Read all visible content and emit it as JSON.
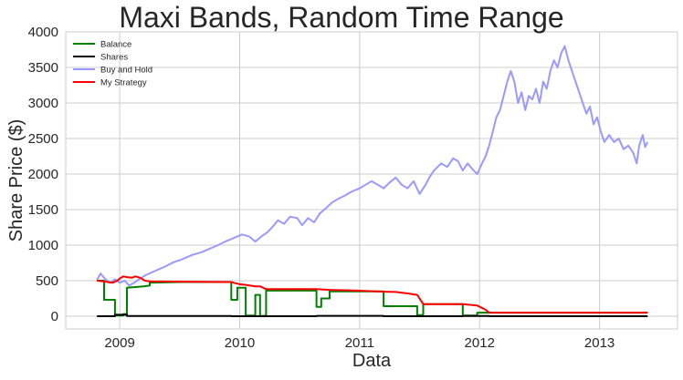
{
  "chart_data": {
    "type": "line",
    "title": "Maxi Bands, Random Time Range",
    "xlabel": "Data",
    "ylabel": "Share Price ($)",
    "xlim": [
      2008.55,
      2013.65
    ],
    "ylim": [
      -180,
      4000
    ],
    "x_ticks": [
      2009,
      2010,
      2011,
      2012,
      2013
    ],
    "x_tick_labels": [
      "2009",
      "2010",
      "2011",
      "2012",
      "2013"
    ],
    "y_ticks": [
      0,
      500,
      1000,
      1500,
      2000,
      2500,
      3000,
      3500,
      4000
    ],
    "y_tick_labels": [
      "0",
      "500",
      "1000",
      "1500",
      "2000",
      "2500",
      "3000",
      "3500",
      "4000"
    ],
    "grid": true,
    "legend_position": "top-left",
    "series": [
      {
        "name": "Balance",
        "color": "#008000",
        "points": [
          [
            2008.81,
            500
          ],
          [
            2008.87,
            500
          ],
          [
            2008.87,
            230
          ],
          [
            2008.96,
            230
          ],
          [
            2008.96,
            10
          ],
          [
            2009.03,
            10
          ],
          [
            2009.03,
            30
          ],
          [
            2009.06,
            30
          ],
          [
            2009.06,
            400
          ],
          [
            2009.2,
            420
          ],
          [
            2009.25,
            430
          ],
          [
            2009.25,
            470
          ],
          [
            2009.5,
            480
          ],
          [
            2009.93,
            480
          ],
          [
            2009.93,
            230
          ],
          [
            2009.98,
            230
          ],
          [
            2009.98,
            400
          ],
          [
            2010.05,
            400
          ],
          [
            2010.05,
            10
          ],
          [
            2010.13,
            10
          ],
          [
            2010.13,
            300
          ],
          [
            2010.17,
            300
          ],
          [
            2010.17,
            5
          ],
          [
            2010.22,
            5
          ],
          [
            2010.22,
            360
          ],
          [
            2010.64,
            360
          ],
          [
            2010.64,
            130
          ],
          [
            2010.68,
            130
          ],
          [
            2010.68,
            250
          ],
          [
            2010.75,
            250
          ],
          [
            2010.75,
            350
          ],
          [
            2010.98,
            350
          ],
          [
            2011.2,
            350
          ],
          [
            2011.2,
            140
          ],
          [
            2011.48,
            140
          ],
          [
            2011.48,
            15
          ],
          [
            2011.53,
            15
          ],
          [
            2011.53,
            170
          ],
          [
            2011.86,
            170
          ],
          [
            2011.86,
            10
          ],
          [
            2011.98,
            10
          ],
          [
            2011.98,
            50
          ],
          [
            2012.08,
            50
          ],
          [
            2013.4,
            50
          ]
        ]
      },
      {
        "name": "Shares",
        "color": "#000000",
        "points": [
          [
            2008.81,
            0
          ],
          [
            2008.96,
            0
          ],
          [
            2008.96,
            20
          ],
          [
            2009.06,
            20
          ],
          [
            2009.06,
            2
          ],
          [
            2009.93,
            2
          ],
          [
            2009.93,
            0
          ],
          [
            2010.64,
            0
          ],
          [
            2010.64,
            5
          ],
          [
            2011.2,
            5
          ],
          [
            2011.2,
            0
          ],
          [
            2011.86,
            0
          ],
          [
            2011.86,
            3
          ],
          [
            2012.08,
            3
          ],
          [
            2012.08,
            0
          ],
          [
            2013.4,
            0
          ]
        ]
      },
      {
        "name": "Buy and Hold",
        "color": "#9999ff",
        "points": [
          [
            2008.81,
            510
          ],
          [
            2008.84,
            600
          ],
          [
            2008.88,
            520
          ],
          [
            2008.92,
            470
          ],
          [
            2008.96,
            520
          ],
          [
            2009.0,
            470
          ],
          [
            2009.04,
            500
          ],
          [
            2009.08,
            430
          ],
          [
            2009.12,
            470
          ],
          [
            2009.17,
            530
          ],
          [
            2009.22,
            580
          ],
          [
            2009.3,
            640
          ],
          [
            2009.38,
            700
          ],
          [
            2009.45,
            760
          ],
          [
            2009.52,
            800
          ],
          [
            2009.6,
            860
          ],
          [
            2009.68,
            900
          ],
          [
            2009.75,
            950
          ],
          [
            2009.82,
            1000
          ],
          [
            2009.88,
            1050
          ],
          [
            2009.95,
            1100
          ],
          [
            2010.02,
            1150
          ],
          [
            2010.08,
            1120
          ],
          [
            2010.13,
            1050
          ],
          [
            2010.18,
            1120
          ],
          [
            2010.23,
            1180
          ],
          [
            2010.27,
            1250
          ],
          [
            2010.32,
            1350
          ],
          [
            2010.37,
            1300
          ],
          [
            2010.42,
            1400
          ],
          [
            2010.48,
            1380
          ],
          [
            2010.52,
            1280
          ],
          [
            2010.57,
            1380
          ],
          [
            2010.62,
            1320
          ],
          [
            2010.67,
            1450
          ],
          [
            2010.72,
            1520
          ],
          [
            2010.77,
            1600
          ],
          [
            2010.82,
            1650
          ],
          [
            2010.88,
            1700
          ],
          [
            2010.93,
            1750
          ],
          [
            2011.0,
            1800
          ],
          [
            2011.05,
            1850
          ],
          [
            2011.1,
            1900
          ],
          [
            2011.15,
            1850
          ],
          [
            2011.2,
            1800
          ],
          [
            2011.25,
            1880
          ],
          [
            2011.3,
            1950
          ],
          [
            2011.35,
            1850
          ],
          [
            2011.4,
            1800
          ],
          [
            2011.45,
            1900
          ],
          [
            2011.5,
            1720
          ],
          [
            2011.55,
            1850
          ],
          [
            2011.58,
            1950
          ],
          [
            2011.62,
            2050
          ],
          [
            2011.68,
            2150
          ],
          [
            2011.73,
            2100
          ],
          [
            2011.78,
            2220
          ],
          [
            2011.82,
            2180
          ],
          [
            2011.86,
            2050
          ],
          [
            2011.9,
            2150
          ],
          [
            2011.95,
            2050
          ],
          [
            2011.98,
            2000
          ],
          [
            2012.02,
            2150
          ],
          [
            2012.05,
            2250
          ],
          [
            2012.08,
            2400
          ],
          [
            2012.11,
            2600
          ],
          [
            2012.14,
            2800
          ],
          [
            2012.17,
            2900
          ],
          [
            2012.2,
            3100
          ],
          [
            2012.23,
            3300
          ],
          [
            2012.26,
            3450
          ],
          [
            2012.29,
            3300
          ],
          [
            2012.32,
            3000
          ],
          [
            2012.35,
            3150
          ],
          [
            2012.38,
            2900
          ],
          [
            2012.41,
            3100
          ],
          [
            2012.44,
            3050
          ],
          [
            2012.47,
            3200
          ],
          [
            2012.5,
            3000
          ],
          [
            2012.53,
            3300
          ],
          [
            2012.56,
            3200
          ],
          [
            2012.59,
            3450
          ],
          [
            2012.62,
            3600
          ],
          [
            2012.65,
            3500
          ],
          [
            2012.68,
            3700
          ],
          [
            2012.71,
            3800
          ],
          [
            2012.74,
            3600
          ],
          [
            2012.77,
            3450
          ],
          [
            2012.8,
            3300
          ],
          [
            2012.83,
            3150
          ],
          [
            2012.86,
            3000
          ],
          [
            2012.89,
            2850
          ],
          [
            2012.92,
            2950
          ],
          [
            2012.95,
            2700
          ],
          [
            2012.98,
            2800
          ],
          [
            2013.01,
            2600
          ],
          [
            2013.04,
            2450
          ],
          [
            2013.08,
            2550
          ],
          [
            2013.12,
            2450
          ],
          [
            2013.16,
            2500
          ],
          [
            2013.2,
            2350
          ],
          [
            2013.24,
            2400
          ],
          [
            2013.28,
            2300
          ],
          [
            2013.31,
            2150
          ],
          [
            2013.33,
            2400
          ],
          [
            2013.36,
            2550
          ],
          [
            2013.38,
            2380
          ],
          [
            2013.4,
            2450
          ]
        ]
      },
      {
        "name": "My Strategy",
        "color": "#ff0000",
        "points": [
          [
            2008.81,
            500
          ],
          [
            2008.86,
            490
          ],
          [
            2008.9,
            480
          ],
          [
            2008.94,
            470
          ],
          [
            2008.98,
            500
          ],
          [
            2009.0,
            530
          ],
          [
            2009.03,
            560
          ],
          [
            2009.06,
            550
          ],
          [
            2009.1,
            540
          ],
          [
            2009.13,
            560
          ],
          [
            2009.17,
            540
          ],
          [
            2009.21,
            500
          ],
          [
            2009.25,
            490
          ],
          [
            2009.5,
            485
          ],
          [
            2009.93,
            480
          ],
          [
            2009.95,
            470
          ],
          [
            2010.0,
            450
          ],
          [
            2010.05,
            440
          ],
          [
            2010.13,
            420
          ],
          [
            2010.17,
            420
          ],
          [
            2010.22,
            380
          ],
          [
            2010.64,
            380
          ],
          [
            2010.7,
            375
          ],
          [
            2010.75,
            370
          ],
          [
            2010.98,
            360
          ],
          [
            2011.2,
            345
          ],
          [
            2011.3,
            340
          ],
          [
            2011.4,
            320
          ],
          [
            2011.48,
            300
          ],
          [
            2011.53,
            170
          ],
          [
            2011.86,
            170
          ],
          [
            2011.98,
            150
          ],
          [
            2012.05,
            90
          ],
          [
            2012.08,
            50
          ],
          [
            2013.4,
            50
          ]
        ]
      }
    ]
  }
}
